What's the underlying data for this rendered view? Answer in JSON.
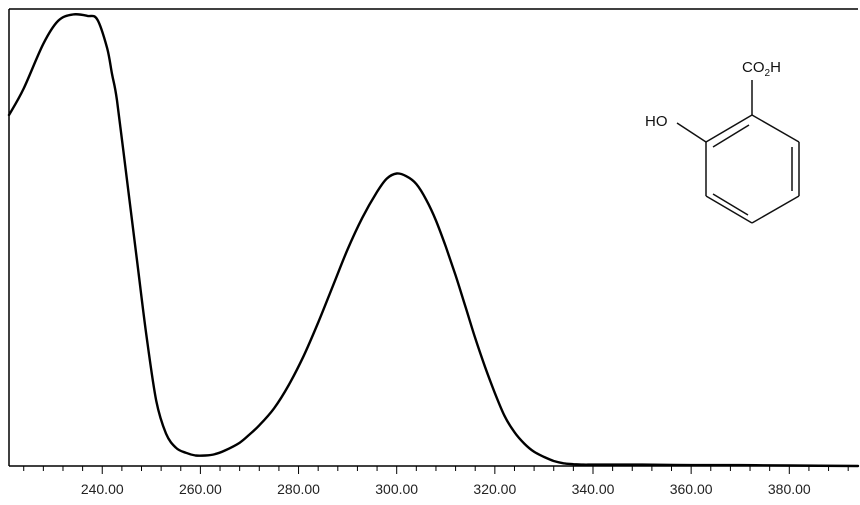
{
  "chart_data": {
    "type": "line",
    "title": "",
    "xlabel": "",
    "ylabel": "",
    "xlim": [
      221,
      394
    ],
    "ylim": [
      0,
      1
    ],
    "grid": false,
    "x_ticks_major": [
      240,
      260,
      280,
      300,
      320,
      340,
      360,
      380
    ],
    "x_tick_labels": [
      "240.00",
      "260.00",
      "280.00",
      "300.00",
      "320.00",
      "340.00",
      "360.00",
      "380.00"
    ],
    "series": [
      {
        "color": "#000000",
        "x": [
          221,
          224,
          228,
          231,
          234,
          237,
          239,
          241,
          242,
          243,
          245,
          247,
          249,
          251,
          253,
          255,
          257,
          259,
          261,
          263,
          265,
          268,
          270,
          272,
          275,
          278,
          281,
          284,
          287,
          290,
          293,
          296,
          298,
          300,
          302,
          304,
          306,
          308,
          310,
          312,
          314,
          316,
          318,
          320,
          322,
          324,
          326,
          328,
          330,
          332,
          334,
          336,
          338,
          340,
          345,
          350,
          360,
          370,
          380,
          394
        ],
        "y": [
          0.768,
          0.826,
          0.924,
          0.974,
          0.988,
          0.985,
          0.977,
          0.914,
          0.857,
          0.8,
          0.629,
          0.457,
          0.286,
          0.143,
          0.071,
          0.04,
          0.029,
          0.023,
          0.023,
          0.026,
          0.034,
          0.051,
          0.069,
          0.089,
          0.126,
          0.177,
          0.24,
          0.314,
          0.394,
          0.474,
          0.543,
          0.6,
          0.629,
          0.64,
          0.634,
          0.617,
          0.583,
          0.537,
          0.48,
          0.417,
          0.349,
          0.28,
          0.217,
          0.16,
          0.109,
          0.074,
          0.049,
          0.031,
          0.02,
          0.011,
          0.006,
          0.004,
          0.003,
          0.003,
          0.003,
          0.003,
          0.002,
          0.002,
          0.001,
          0.0
        ]
      }
    ],
    "annotation": {
      "type": "chemical-structure",
      "substituent_top": "CO",
      "substituent_top_subscript": "2",
      "substituent_top_suffix": "H",
      "substituent_left": "HO"
    }
  }
}
